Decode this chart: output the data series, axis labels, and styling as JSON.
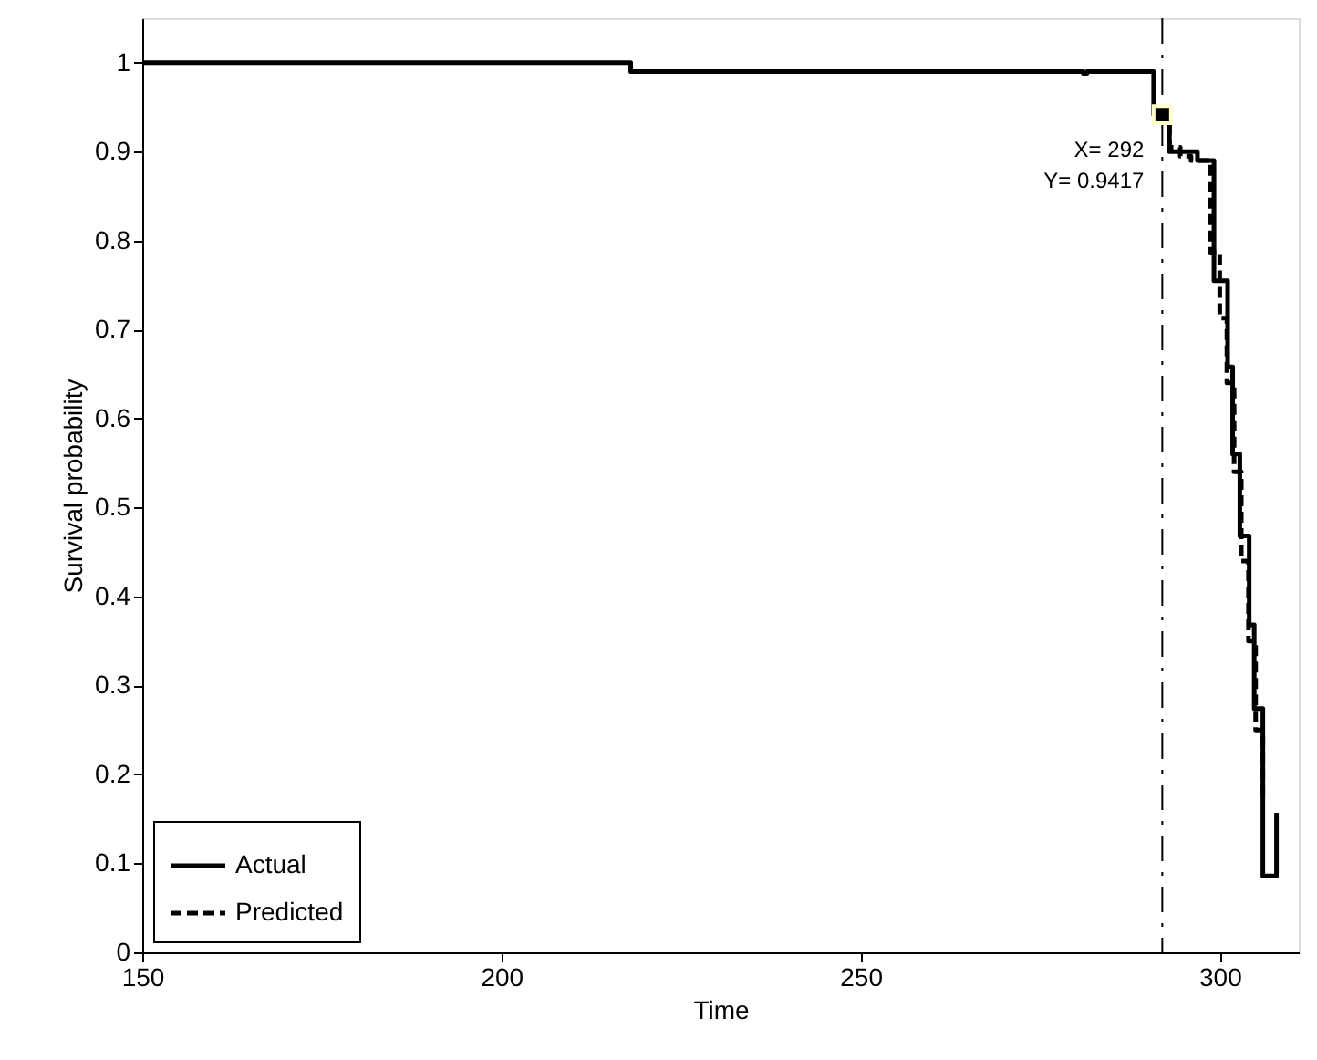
{
  "chart_data": {
    "type": "step",
    "xlabel": "Time",
    "ylabel": "Survival probability",
    "xlim": [
      150,
      311
    ],
    "xticks": [
      150,
      200,
      250,
      300
    ],
    "ylim": [
      0,
      1.05
    ],
    "yticks": [
      0,
      0.1,
      0.2,
      0.3,
      0.4,
      0.5,
      0.6,
      0.7,
      0.8,
      0.9,
      1
    ],
    "grid": false,
    "legend": "bottom left",
    "marker": "none",
    "series": [
      {
        "name": "Actual",
        "color": "#000000",
        "line_style": "solid",
        "x": [
          150,
          218,
          281,
          281.5,
          290.8,
          293,
          296.9,
          299.2,
          301.1,
          301.8,
          302.8,
          304.1,
          304.8,
          306,
          307.9
        ],
        "values": [
          1,
          0.99,
          0.988,
          0.99,
          0.9417,
          0.9,
          0.89,
          0.755,
          0.658,
          0.56,
          0.468,
          0.368,
          0.274,
          0.086,
          0.157
        ]
      },
      {
        "name": "Predicted",
        "color": "#000000",
        "line_style": "dashed",
        "x": [
          292,
          293,
          294.5,
          296,
          298.7,
          300,
          301,
          302,
          303,
          304,
          305,
          306
        ],
        "values": [
          0.9417,
          0.905,
          0.895,
          0.89,
          0.787,
          0.713,
          0.64,
          0.54,
          0.44,
          0.35,
          0.25,
          0.17
        ]
      }
    ],
    "ref_lines": [
      {
        "axis": "x",
        "value": 292,
        "label": null,
        "color": "#000000",
        "line_style": "dashed"
      }
    ],
    "annotations": [
      {
        "text": "X= 292\nY= 0.9417",
        "x": 292,
        "y": 0.9417
      }
    ]
  }
}
